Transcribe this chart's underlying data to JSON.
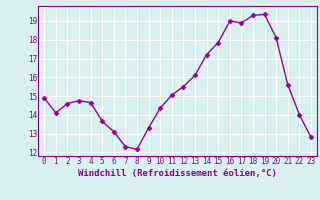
{
  "x": [
    0,
    1,
    2,
    3,
    4,
    5,
    6,
    7,
    8,
    9,
    10,
    11,
    12,
    13,
    14,
    15,
    16,
    17,
    18,
    19,
    20,
    21,
    22,
    23
  ],
  "y": [
    14.9,
    14.1,
    14.6,
    14.75,
    14.65,
    13.65,
    13.1,
    12.3,
    12.15,
    13.3,
    14.35,
    15.05,
    15.5,
    16.1,
    17.2,
    17.85,
    19.0,
    18.9,
    19.3,
    19.35,
    18.1,
    15.6,
    14.0,
    12.8
  ],
  "line_color": "#990099",
  "marker": "D",
  "markersize": 2.5,
  "linewidth": 1.0,
  "xlabel": "Windchill (Refroidissement éolien,°C)",
  "xlabel_fontsize": 6.5,
  "ylim": [
    11.8,
    19.8
  ],
  "yticks": [
    12,
    13,
    14,
    15,
    16,
    17,
    18,
    19
  ],
  "xticks": [
    0,
    1,
    2,
    3,
    4,
    5,
    6,
    7,
    8,
    9,
    10,
    11,
    12,
    13,
    14,
    15,
    16,
    17,
    18,
    19,
    20,
    21,
    22,
    23
  ],
  "bg_color": "#d8f0f0",
  "grid_color": "#ffffff",
  "tick_color": "#880088",
  "label_color": "#880088",
  "tick_fontsize": 5.5,
  "spine_color": "#880088"
}
